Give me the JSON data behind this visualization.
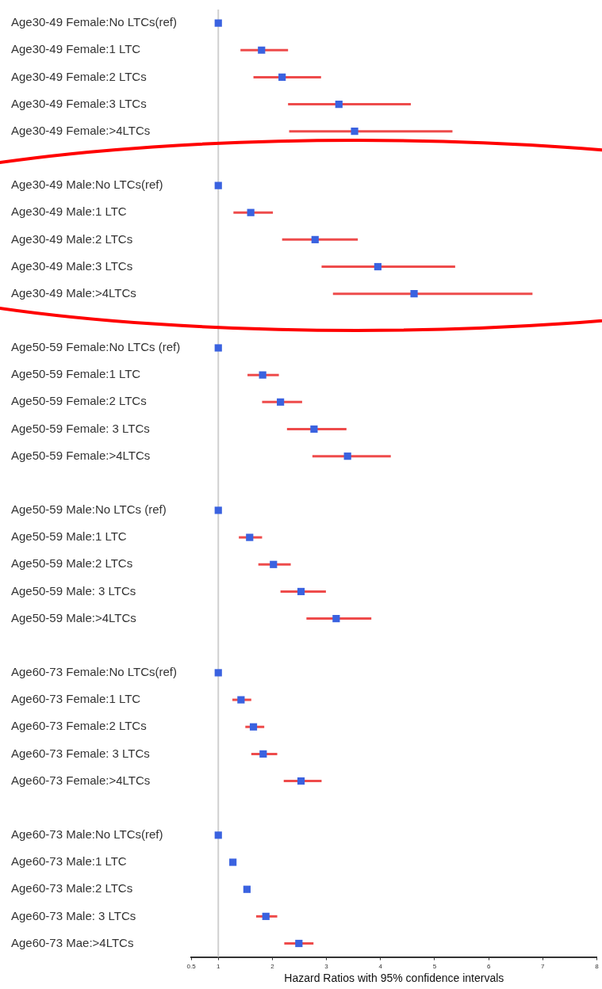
{
  "chart_data": {
    "type": "scatter",
    "orientation": "horizontal",
    "categories": [
      "Age30-49 Female:No LTCs(ref)",
      "Age30-49 Female:1 LTC",
      "Age30-49 Female:2 LTCs",
      "Age30-49 Female:3 LTCs",
      "Age30-49 Female:>4LTCs",
      null,
      "Age30-49 Male:No LTCs(ref)",
      "Age30-49 Male:1 LTC",
      "Age30-49 Male:2 LTCs",
      "Age30-49 Male:3 LTCs",
      "Age30-49 Male:>4LTCs",
      null,
      "Age50-59 Female:No LTCs (ref)",
      "Age50-59 Female:1 LTC",
      "Age50-59 Female:2 LTCs",
      "Age50-59 Female: 3 LTCs",
      "Age50-59 Female:>4LTCs",
      null,
      "Age50-59 Male:No LTCs (ref)",
      "Age50-59 Male:1 LTC",
      "Age50-59 Male:2 LTCs",
      "Age50-59 Male: 3 LTCs",
      "Age50-59 Male:>4LTCs",
      null,
      "Age60-73 Female:No LTCs(ref)",
      "Age60-73 Female:1 LTC",
      "Age60-73 Female:2 LTCs",
      "Age60-73 Female: 3 LTCs",
      "Age60-73 Female:>4LTCs",
      null,
      "Age60-73 Male:No LTCs(ref)",
      "Age60-73 Male:1 LTC",
      "Age60-73 Male:2 LTCs",
      "Age60-73 Male: 3 LTCs",
      "Age60-73 Mae:>4LTCs"
    ],
    "values": [
      1,
      1.8,
      2.18,
      3.23,
      3.52,
      null,
      1,
      1.6,
      2.79,
      3.95,
      4.62,
      null,
      1,
      1.82,
      2.15,
      2.77,
      3.39,
      null,
      1,
      1.58,
      2.02,
      2.53,
      3.18,
      null,
      1,
      1.42,
      1.65,
      1.83,
      2.53,
      null,
      1,
      1.27,
      1.53,
      1.88,
      2.49
    ],
    "errors": [
      null,
      [
        1.41,
        2.29
      ],
      [
        1.65,
        2.9
      ],
      [
        2.29,
        4.56
      ],
      [
        2.31,
        5.33
      ],
      null,
      null,
      [
        1.28,
        2.01
      ],
      [
        2.18,
        3.58
      ],
      [
        2.91,
        5.38
      ],
      [
        3.12,
        6.81
      ],
      null,
      null,
      [
        1.54,
        2.12
      ],
      [
        1.81,
        2.55
      ],
      [
        2.27,
        3.37
      ],
      [
        2.74,
        4.19
      ],
      null,
      null,
      [
        1.38,
        1.81
      ],
      [
        1.74,
        2.34
      ],
      [
        2.15,
        2.99
      ],
      [
        2.63,
        3.83
      ],
      null,
      null,
      [
        1.26,
        1.61
      ],
      [
        1.5,
        1.85
      ],
      [
        1.61,
        2.09
      ],
      [
        2.21,
        2.91
      ],
      null,
      null,
      null,
      null,
      [
        1.7,
        2.09
      ],
      [
        2.22,
        2.76
      ]
    ],
    "color": "#3a62e0",
    "xlim": [
      0.5,
      8
    ],
    "xticks": [
      0.5,
      1,
      2,
      3,
      4,
      5,
      6,
      7,
      8
    ],
    "xlabel": "Hazard Ratios with 95% confidence intervals",
    "ref_lines": [
      {
        "axis": "x",
        "value": 1,
        "color": "#d0d0d0"
      }
    ],
    "marker": "square",
    "grid": false,
    "legend": false
  }
}
